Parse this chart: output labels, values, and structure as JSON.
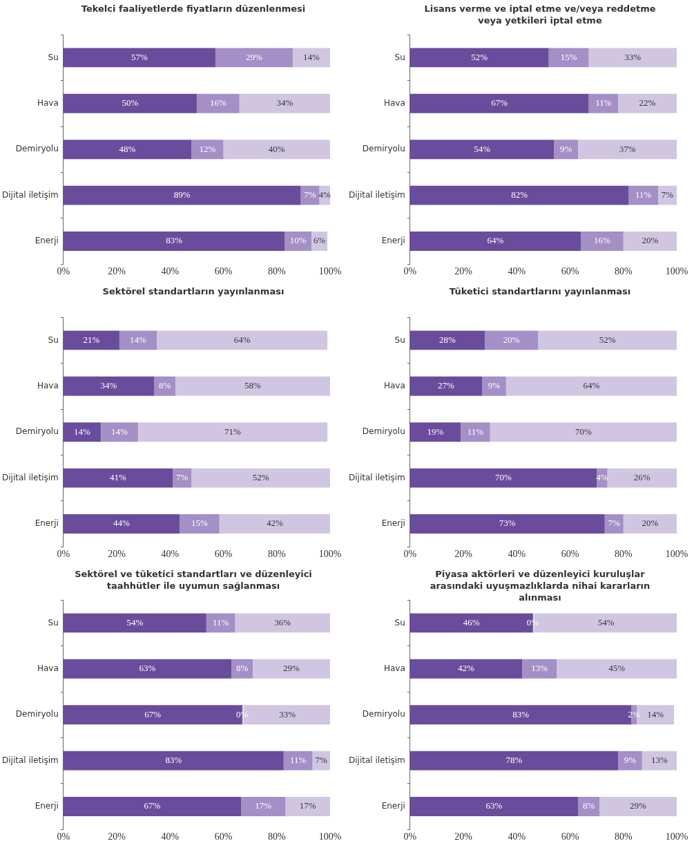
{
  "chart_data": [
    {
      "type": "bar",
      "orientation": "horizontal",
      "stacked": true,
      "grid": false,
      "legend": false,
      "title": "Tekelci faaliyetlerde fiyatların düzenlenmesi",
      "categories": [
        "Su",
        "Hava",
        "Demiryolu",
        "Dijital iletişim",
        "Enerji"
      ],
      "xlim": [
        0,
        100
      ],
      "xticks": [
        {
          "value": 0,
          "label": "0%"
        },
        {
          "value": 20,
          "label": "20%"
        },
        {
          "value": 40,
          "label": "40%"
        },
        {
          "value": 60,
          "label": "60%"
        },
        {
          "value": 80,
          "label": "80%"
        },
        {
          "value": 100,
          "label": "100%"
        }
      ],
      "series": [
        {
          "color": "#6a4c9c",
          "values": [
            57,
            50,
            48,
            89,
            83
          ],
          "value_labels": [
            "57%",
            "50%",
            "48%",
            "89%",
            "83%"
          ]
        },
        {
          "color": "#a48fc7",
          "values": [
            29,
            16,
            12,
            7,
            10
          ],
          "value_labels": [
            "29%",
            "16%",
            "12%",
            "7%",
            "10%"
          ]
        },
        {
          "color": "#d0c6e2",
          "values": [
            14,
            34,
            40,
            4,
            6
          ],
          "value_labels": [
            "14%",
            "34%",
            "40%",
            "4%",
            "6%"
          ]
        }
      ]
    },
    {
      "type": "bar",
      "orientation": "horizontal",
      "stacked": true,
      "grid": false,
      "legend": false,
      "title": "Lisans verme ve iptal etme ve/veya reddetme veya yetkileri iptal etme",
      "categories": [
        "Su",
        "Hava",
        "Demiryolu",
        "Dijital iletişim",
        "Enerji"
      ],
      "xlim": [
        0,
        100
      ],
      "xticks": [
        {
          "value": 0,
          "label": "0%"
        },
        {
          "value": 20,
          "label": "20%"
        },
        {
          "value": 40,
          "label": "40%"
        },
        {
          "value": 60,
          "label": "60%"
        },
        {
          "value": 80,
          "label": "80%"
        },
        {
          "value": 100,
          "label": "100%"
        }
      ],
      "series": [
        {
          "color": "#6a4c9c",
          "values": [
            52,
            67,
            54,
            82,
            64
          ],
          "value_labels": [
            "52%",
            "67%",
            "54%",
            "82%",
            "64%"
          ]
        },
        {
          "color": "#a48fc7",
          "values": [
            15,
            11,
            9,
            11,
            16
          ],
          "value_labels": [
            "15%",
            "11%",
            "9%",
            "11%",
            "16%"
          ]
        },
        {
          "color": "#d0c6e2",
          "values": [
            33,
            22,
            37,
            7,
            20
          ],
          "value_labels": [
            "33%",
            "22%",
            "37%",
            "7%",
            "20%"
          ]
        }
      ]
    },
    {
      "type": "bar",
      "orientation": "horizontal",
      "stacked": true,
      "grid": false,
      "legend": false,
      "title": "Sektörel standartların yayınlanması",
      "categories": [
        "Su",
        "Hava",
        "Demiryolu",
        "Dijital iletişim",
        "Enerji"
      ],
      "xlim": [
        0,
        100
      ],
      "xticks": [
        {
          "value": 0,
          "label": "0%"
        },
        {
          "value": 20,
          "label": "20%"
        },
        {
          "value": 40,
          "label": "40%"
        },
        {
          "value": 60,
          "label": "60%"
        },
        {
          "value": 80,
          "label": "80%"
        },
        {
          "value": 100,
          "label": "100%"
        }
      ],
      "series": [
        {
          "color": "#6a4c9c",
          "values": [
            21,
            34,
            14,
            41,
            43.6
          ],
          "value_labels": [
            "21%",
            "34%",
            "14%",
            "41%",
            "44%"
          ]
        },
        {
          "color": "#a48fc7",
          "values": [
            14,
            8,
            14,
            7,
            14.9
          ],
          "value_labels": [
            "14%",
            "8%",
            "14%",
            "7%",
            "15%"
          ]
        },
        {
          "color": "#d0c6e2",
          "values": [
            64,
            58,
            71,
            52,
            41.5
          ],
          "value_labels": [
            "64%",
            "58%",
            "71%",
            "52%",
            "42%"
          ]
        }
      ]
    },
    {
      "type": "bar",
      "orientation": "horizontal",
      "stacked": true,
      "grid": false,
      "legend": false,
      "title": "Tüketici standartlarını yayınlanması",
      "categories": [
        "Su",
        "Hava",
        "Demiryolu",
        "Dijital iletişim",
        "Enerji"
      ],
      "xlim": [
        0,
        100
      ],
      "xticks": [
        {
          "value": 0,
          "label": "0%"
        },
        {
          "value": 20,
          "label": "20%"
        },
        {
          "value": 40,
          "label": "40%"
        },
        {
          "value": 60,
          "label": "60%"
        },
        {
          "value": 80,
          "label": "80%"
        },
        {
          "value": 100,
          "label": "100%"
        }
      ],
      "series": [
        {
          "color": "#6a4c9c",
          "values": [
            28,
            27,
            19,
            70,
            73
          ],
          "value_labels": [
            "28%",
            "27%",
            "19%",
            "70%",
            "73%"
          ]
        },
        {
          "color": "#a48fc7",
          "values": [
            20,
            9,
            11,
            4,
            7
          ],
          "value_labels": [
            "20%",
            "9%",
            "11%",
            "4%",
            "7%"
          ]
        },
        {
          "color": "#d0c6e2",
          "values": [
            52,
            64,
            70,
            26,
            20
          ],
          "value_labels": [
            "52%",
            "64%",
            "70%",
            "26%",
            "20%"
          ]
        }
      ]
    },
    {
      "type": "bar",
      "orientation": "horizontal",
      "stacked": true,
      "grid": false,
      "legend": false,
      "title": "Sektörel ve tüketici standartları ve düzenleyici taahhütler ile uyumun sağlanması",
      "categories": [
        "Su",
        "Hava",
        "Demiryolu",
        "Dijital iletişim",
        "Enerji"
      ],
      "xlim": [
        0,
        100
      ],
      "xticks": [
        {
          "value": 0,
          "label": "0%"
        },
        {
          "value": 20,
          "label": "20%"
        },
        {
          "value": 40,
          "label": "40%"
        },
        {
          "value": 60,
          "label": "60%"
        },
        {
          "value": 80,
          "label": "80%"
        },
        {
          "value": 100,
          "label": "100%"
        }
      ],
      "series": [
        {
          "color": "#6a4c9c",
          "values": [
            53.6,
            63,
            67,
            82.6,
            66.6
          ],
          "value_labels": [
            "54%",
            "63%",
            "67%",
            "83%",
            "67%"
          ]
        },
        {
          "color": "#a48fc7",
          "values": [
            10.8,
            8,
            0,
            10.8,
            16.7
          ],
          "value_labels": [
            "11%",
            "8%",
            "0%",
            "11%",
            "17%"
          ]
        },
        {
          "color": "#d0c6e2",
          "values": [
            35.6,
            29,
            33,
            6.6,
            16.7
          ],
          "value_labels": [
            "36%",
            "29%",
            "33%",
            "7%",
            "17%"
          ]
        }
      ]
    },
    {
      "type": "bar",
      "orientation": "horizontal",
      "stacked": true,
      "grid": false,
      "legend": false,
      "title": "Piyasa aktörleri ve düzenleyici kuruluşlar arasındaki uyuşmazlıklarda nihai kararların alınması",
      "categories": [
        "Su",
        "Hava",
        "Demiryolu",
        "Dijital iletişim",
        "Enerji"
      ],
      "xlim": [
        0,
        100
      ],
      "xticks": [
        {
          "value": 0,
          "label": "0%"
        },
        {
          "value": 20,
          "label": "20%"
        },
        {
          "value": 40,
          "label": "40%"
        },
        {
          "value": 60,
          "label": "60%"
        },
        {
          "value": 80,
          "label": "80%"
        },
        {
          "value": 100,
          "label": "100%"
        }
      ],
      "series": [
        {
          "color": "#6a4c9c",
          "values": [
            46,
            42,
            83,
            78,
            63
          ],
          "value_labels": [
            "46%",
            "42%",
            "83%",
            "78%",
            "63%"
          ]
        },
        {
          "color": "#a48fc7",
          "values": [
            0,
            13,
            2,
            9,
            8
          ],
          "value_labels": [
            "0%",
            "13%",
            "2%",
            "9%",
            "8%"
          ]
        },
        {
          "color": "#d0c6e2",
          "values": [
            54,
            45,
            14,
            13,
            29
          ],
          "value_labels": [
            "54%",
            "45%",
            "14%",
            "13%",
            "29%"
          ]
        }
      ]
    }
  ]
}
